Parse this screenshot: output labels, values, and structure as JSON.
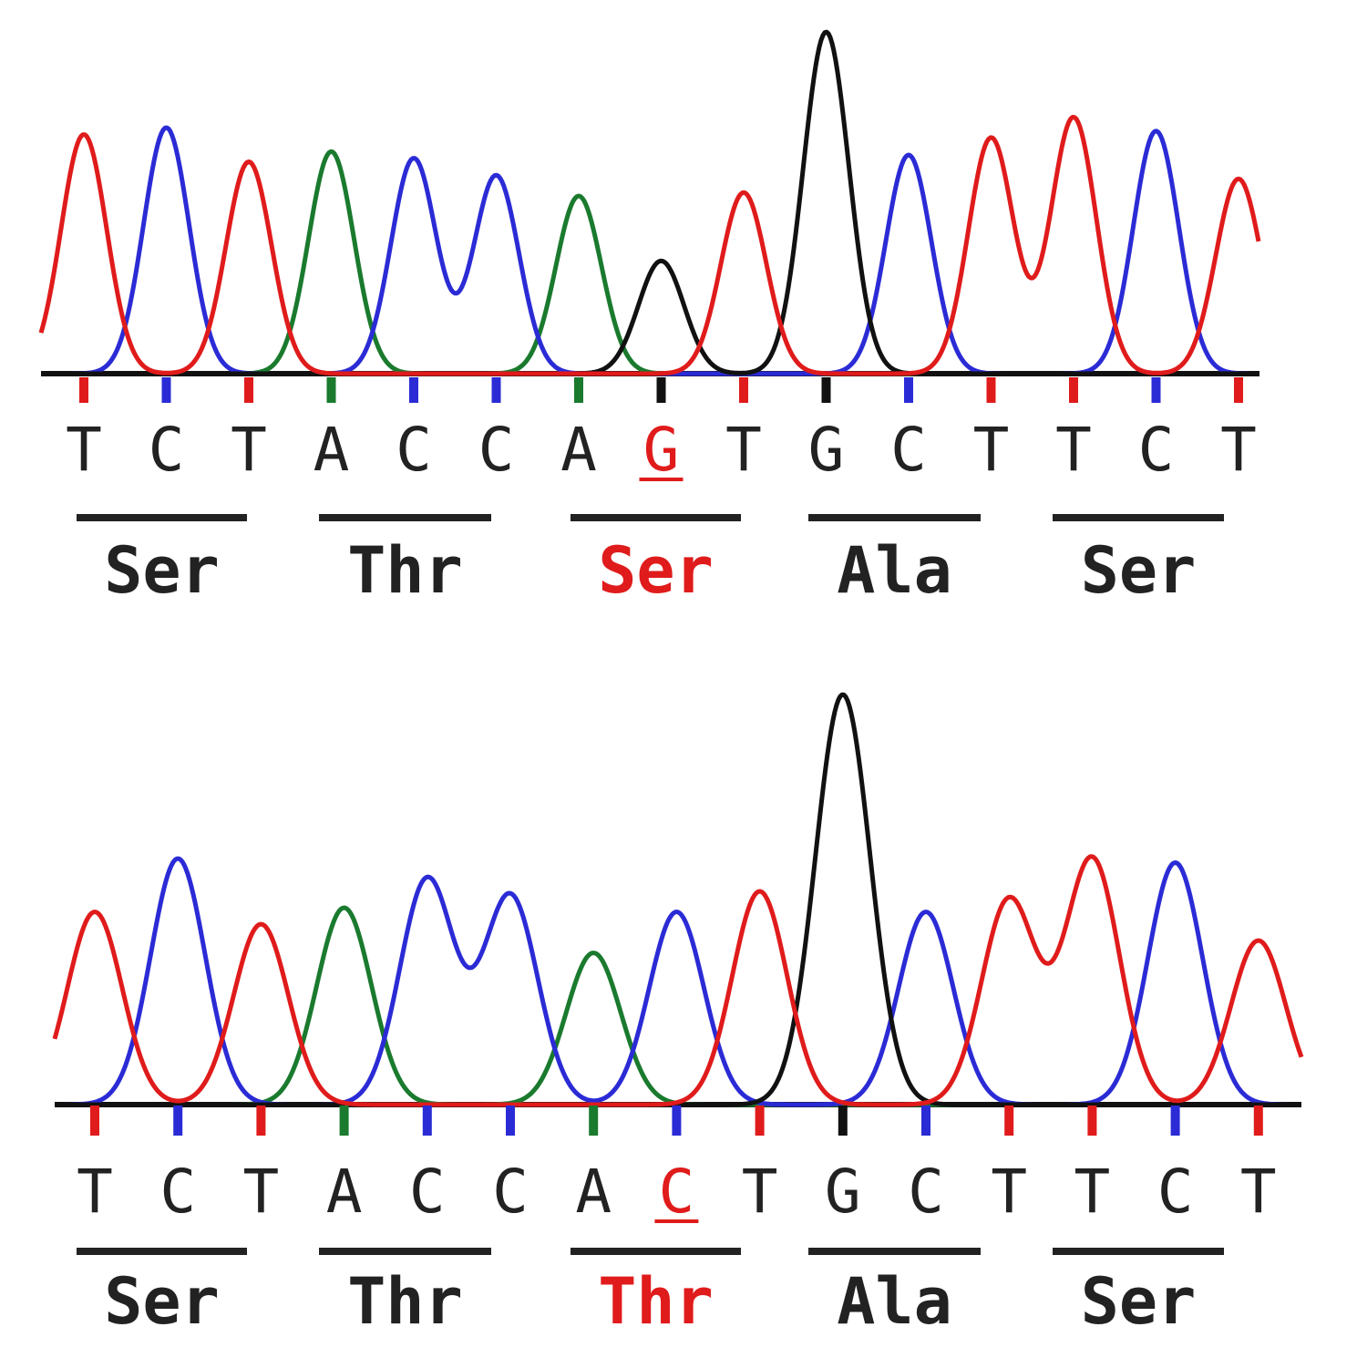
{
  "colors": {
    "A": "#1a7a2e",
    "C": "#2b2bd6",
    "G": "#111111",
    "T": "#e01b1b",
    "mutation": "#e01b1b",
    "text": "#222222",
    "baseline": "#111111"
  },
  "panels": [
    {
      "id": "panel-1",
      "bases": [
        "T",
        "C",
        "T",
        "A",
        "C",
        "C",
        "A",
        "G",
        "T",
        "G",
        "C",
        "T",
        "T",
        "C",
        "T"
      ],
      "peak_heights": [
        0.7,
        0.72,
        0.62,
        0.65,
        0.63,
        0.58,
        0.52,
        0.33,
        0.53,
        1.0,
        0.64,
        0.69,
        0.75,
        0.71,
        0.57
      ],
      "mutation_index": 7,
      "codons": [
        {
          "label": "Ser",
          "highlight": false
        },
        {
          "label": "Thr",
          "highlight": false
        },
        {
          "label": "Ser",
          "highlight": true
        },
        {
          "label": "Ala",
          "highlight": false
        },
        {
          "label": "Ser",
          "highlight": false
        }
      ]
    },
    {
      "id": "panel-2",
      "bases": [
        "T",
        "C",
        "T",
        "A",
        "C",
        "C",
        "A",
        "C",
        "T",
        "G",
        "C",
        "T",
        "T",
        "C",
        "T"
      ],
      "peak_heights": [
        0.47,
        0.6,
        0.44,
        0.48,
        0.55,
        0.51,
        0.37,
        0.47,
        0.52,
        1.0,
        0.47,
        0.5,
        0.6,
        0.59,
        0.4
      ],
      "mutation_index": 7,
      "codons": [
        {
          "label": "Ser",
          "highlight": false
        },
        {
          "label": "Thr",
          "highlight": false
        },
        {
          "label": "Thr",
          "highlight": true
        },
        {
          "label": "Ala",
          "highlight": false
        },
        {
          "label": "Ser",
          "highlight": false
        }
      ]
    }
  ]
}
